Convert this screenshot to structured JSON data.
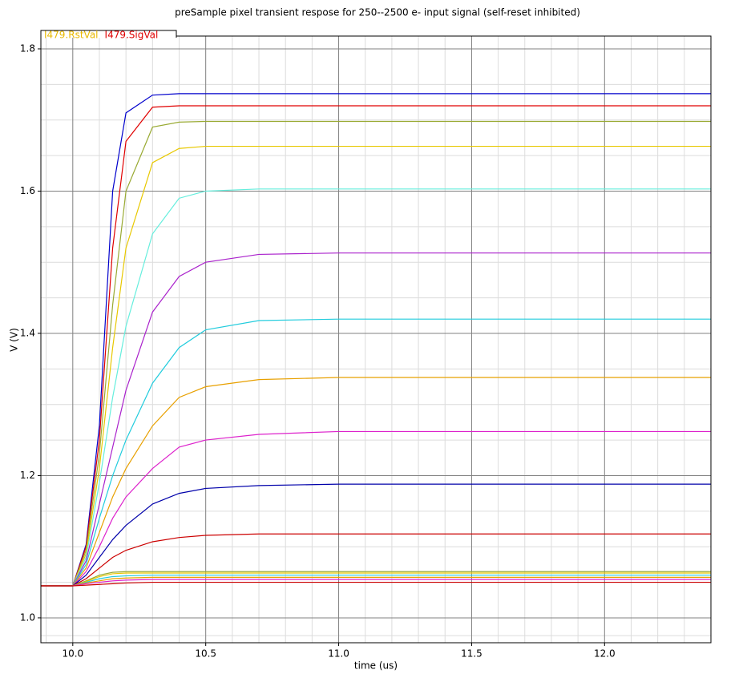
{
  "chart_data": {
    "type": "line",
    "title": "preSample pixel transient respose for 250--2500 e- input signal (self-reset inhibited)",
    "x_label": "time (us)",
    "y_label": "V (V)",
    "legend": [
      {
        "name": "I479.RstVal",
        "color": "#e8b800"
      },
      {
        "name": "I479.SigVal",
        "color": "#e00000"
      }
    ],
    "xlim": [
      9.88,
      12.4
    ],
    "ylim": [
      0.965,
      1.818
    ],
    "xticks": [
      {
        "value": 10,
        "label": "10.0"
      },
      10.5,
      {
        "value": 11,
        "label": "11.0"
      },
      11.5,
      {
        "value": 12,
        "label": "12.0"
      }
    ],
    "yticks": [
      {
        "value": 1,
        "label": "1.0"
      },
      1.2,
      1.4,
      1.6,
      1.8
    ],
    "minor_xticks": [
      9.9,
      10.1,
      10.2,
      10.3,
      10.4,
      10.6,
      10.7,
      10.8,
      10.9,
      11.1,
      11.2,
      11.3,
      11.4,
      11.6,
      11.7,
      11.8,
      11.9,
      12.1,
      12.2,
      12.3
    ],
    "minor_yticks": [
      0.975,
      1.05,
      1.1,
      1.15,
      1.25,
      1.3,
      1.35,
      1.45,
      1.5,
      1.55,
      1.65,
      1.7,
      1.75
    ],
    "grid": true,
    "x": [
      9.88,
      10.0,
      10.05,
      10.1,
      10.15,
      10.2,
      10.3,
      10.4,
      10.5,
      10.7,
      11.0,
      12.4
    ],
    "series": [
      {
        "color": "#0000cc",
        "values": [
          1.045,
          1.045,
          1.103,
          1.27,
          1.6,
          1.71,
          1.735,
          1.737,
          1.737,
          1.737,
          1.737,
          1.737
        ]
      },
      {
        "color": "#e00000",
        "values": [
          1.045,
          1.045,
          1.1,
          1.25,
          1.52,
          1.67,
          1.718,
          1.72,
          1.72,
          1.72,
          1.72,
          1.72
        ]
      },
      {
        "color": "#99aa33",
        "values": [
          1.045,
          1.045,
          1.095,
          1.23,
          1.44,
          1.6,
          1.69,
          1.697,
          1.698,
          1.698,
          1.698,
          1.698
        ]
      },
      {
        "color": "#e8c800",
        "values": [
          1.045,
          1.045,
          1.09,
          1.21,
          1.38,
          1.52,
          1.64,
          1.66,
          1.663,
          1.663,
          1.663,
          1.663
        ]
      },
      {
        "color": "#66eedd",
        "values": [
          1.045,
          1.045,
          1.085,
          1.19,
          1.31,
          1.41,
          1.54,
          1.59,
          1.6,
          1.603,
          1.603,
          1.603
        ]
      },
      {
        "color": "#aa22cc",
        "values": [
          1.045,
          1.045,
          1.08,
          1.16,
          1.24,
          1.32,
          1.43,
          1.48,
          1.5,
          1.511,
          1.513,
          1.513
        ]
      },
      {
        "color": "#22ccdd",
        "values": [
          1.045,
          1.045,
          1.075,
          1.14,
          1.2,
          1.25,
          1.33,
          1.38,
          1.405,
          1.418,
          1.42,
          1.42
        ]
      },
      {
        "color": "#e8a000",
        "values": [
          1.045,
          1.045,
          1.07,
          1.12,
          1.17,
          1.21,
          1.27,
          1.31,
          1.325,
          1.335,
          1.338,
          1.338
        ]
      },
      {
        "color": "#dd22cc",
        "values": [
          1.045,
          1.045,
          1.065,
          1.1,
          1.14,
          1.17,
          1.21,
          1.24,
          1.25,
          1.258,
          1.262,
          1.262
        ]
      },
      {
        "color": "#0000aa",
        "values": [
          1.045,
          1.045,
          1.06,
          1.085,
          1.11,
          1.13,
          1.16,
          1.175,
          1.182,
          1.186,
          1.188,
          1.188
        ]
      },
      {
        "color": "#cc0000",
        "values": [
          1.045,
          1.045,
          1.055,
          1.07,
          1.085,
          1.095,
          1.107,
          1.113,
          1.116,
          1.118,
          1.118,
          1.118
        ]
      },
      {
        "color": "#99aa33",
        "values": [
          1.045,
          1.045,
          1.052,
          1.06,
          1.064,
          1.065,
          1.065,
          1.065,
          1.065,
          1.065,
          1.065,
          1.065
        ]
      },
      {
        "color": "#e8c800",
        "values": [
          1.045,
          1.045,
          1.051,
          1.058,
          1.062,
          1.063,
          1.063,
          1.063,
          1.063,
          1.063,
          1.063,
          1.063
        ]
      },
      {
        "color": "#22ccdd",
        "values": [
          1.045,
          1.045,
          1.05,
          1.055,
          1.058,
          1.059,
          1.06,
          1.06,
          1.06,
          1.06,
          1.06,
          1.06
        ]
      },
      {
        "color": "#e8a000",
        "values": [
          1.045,
          1.045,
          1.049,
          1.052,
          1.055,
          1.056,
          1.057,
          1.057,
          1.057,
          1.057,
          1.057,
          1.057
        ]
      },
      {
        "color": "#dd22cc",
        "values": [
          1.045,
          1.045,
          1.048,
          1.05,
          1.052,
          1.053,
          1.054,
          1.054,
          1.054,
          1.054,
          1.054,
          1.054
        ]
      },
      {
        "color": "#cc0000",
        "values": [
          1.045,
          1.045,
          1.046,
          1.047,
          1.048,
          1.049,
          1.05,
          1.05,
          1.05,
          1.05,
          1.05,
          1.05
        ]
      }
    ]
  }
}
